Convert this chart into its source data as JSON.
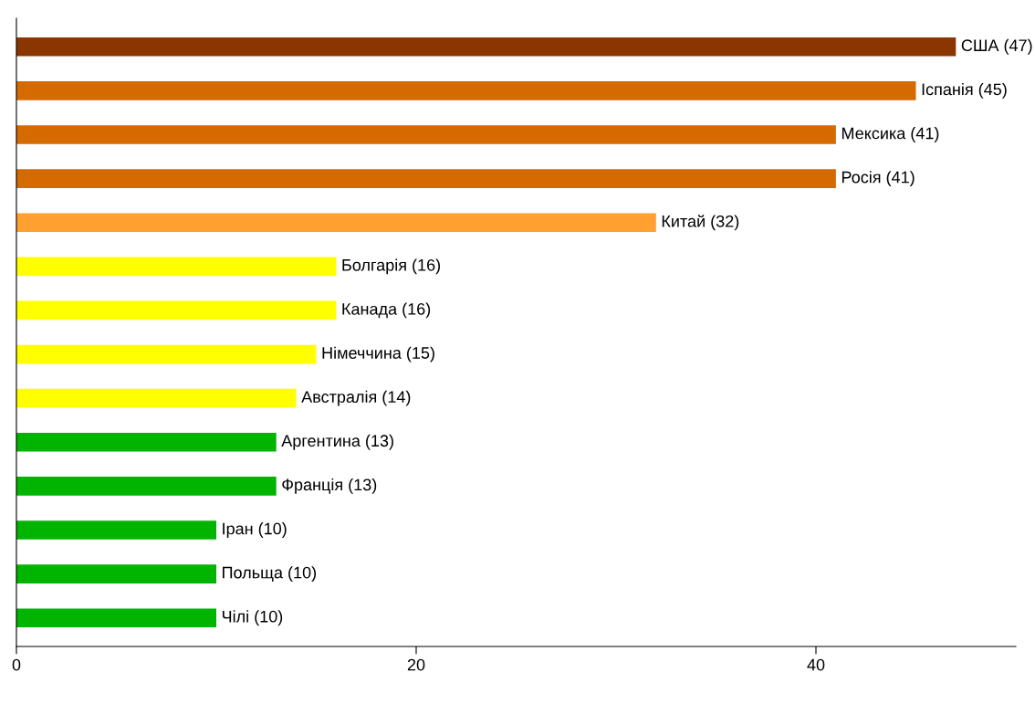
{
  "chart_data": {
    "type": "bar",
    "orientation": "horizontal",
    "categories": [
      null,
      null,
      null,
      null,
      null,
      null,
      null,
      null,
      null,
      null,
      null,
      null,
      null,
      null
    ],
    "values": [
      47,
      45,
      41,
      41,
      32,
      16,
      16,
      15,
      14,
      13,
      13,
      10,
      10,
      10
    ],
    "colors": [
      "#8b3600",
      "#d46a00",
      "#d46a00",
      "#d46a00",
      "#ffa030",
      "#ffff00",
      "#ffff00",
      "#ffff00",
      "#ffff00",
      "#00b400",
      "#00b400",
      "#00b400",
      "#00b400",
      "#00b400"
    ],
    "value_labels": [
      "США (47)",
      "Іспанія (45)",
      "Мексика (41)",
      "Росія (41)",
      "Китай (32)",
      "Болгарія (16)",
      "Канада (16)",
      "Німеччина (15)",
      "Австралія (14)",
      "Аргентина (13)",
      "Франція (13)",
      "Іран (10)",
      "Польща (10)",
      "Чілі (10)"
    ],
    "xlim": [
      0,
      50
    ],
    "xticks": [
      0,
      20,
      40
    ],
    "tick_labels": "x"
  }
}
